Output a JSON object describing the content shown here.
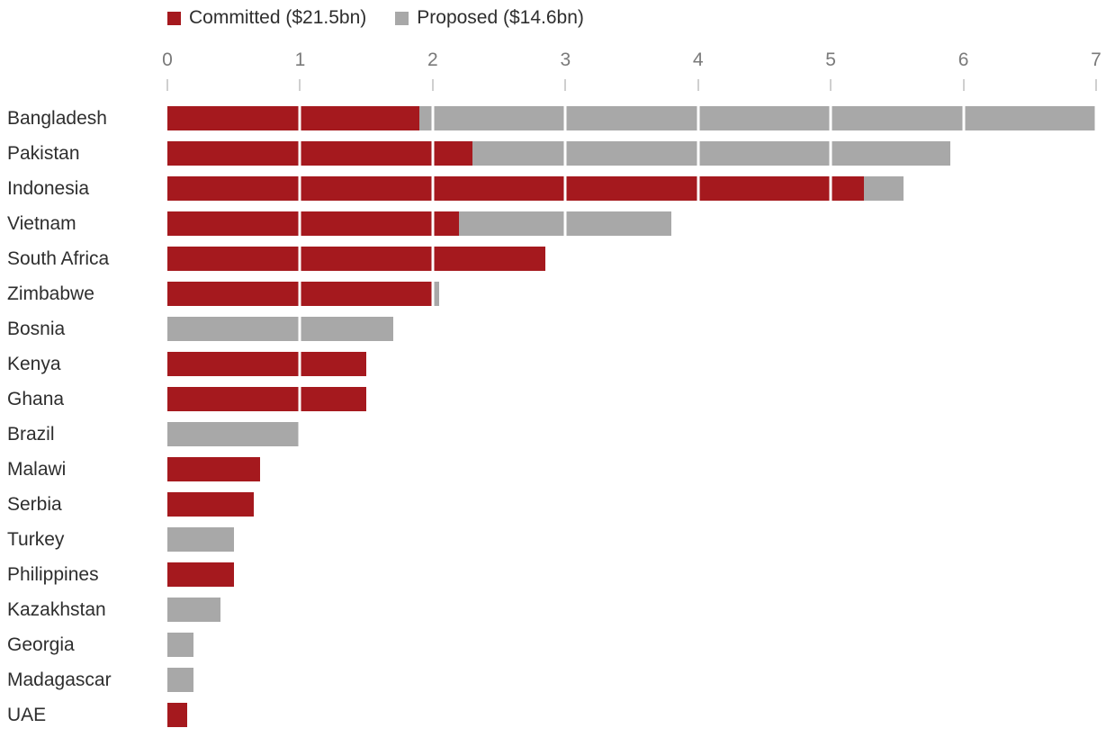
{
  "legend": {
    "committed": "Committed ($21.5bn)",
    "proposed": "Proposed ($14.6bn)"
  },
  "colors": {
    "committed": "#a5191e",
    "proposed": "#a8a8a8",
    "background": "#ffffff",
    "label_text": "#2e2e2e",
    "axis_text": "#7a7a7a",
    "tick": "#cfcfcf"
  },
  "chart_data": {
    "type": "bar",
    "orientation": "horizontal",
    "stacked": true,
    "title": "",
    "xlabel": "",
    "ylabel": "",
    "xlim": [
      0,
      7
    ],
    "x_ticks": [
      0,
      1,
      2,
      3,
      4,
      5,
      6,
      7
    ],
    "grid": "white vertical gridlines over bars at integer values",
    "legend_position": "top",
    "categories": [
      "Bangladesh",
      "Pakistan",
      "Indonesia",
      "Vietnam",
      "South Africa",
      "Zimbabwe",
      "Bosnia",
      "Kenya",
      "Ghana",
      "Brazil",
      "Malawi",
      "Serbia",
      "Turkey",
      "Philippines",
      "Kazakhstan",
      "Georgia",
      "Madagascar",
      "UAE"
    ],
    "series": [
      {
        "name": "Committed",
        "label": "Committed ($21.5bn)",
        "color": "#a5191e",
        "values": [
          1.9,
          2.3,
          5.25,
          2.2,
          2.85,
          2.0,
          0,
          1.5,
          1.5,
          0,
          0.7,
          0.65,
          0,
          0.5,
          0,
          0,
          0,
          0.15
        ]
      },
      {
        "name": "Proposed",
        "label": "Proposed ($14.6bn)",
        "color": "#a8a8a8",
        "values": [
          5.1,
          3.6,
          0.3,
          1.6,
          0,
          0.05,
          1.7,
          0,
          0,
          1.0,
          0,
          0,
          0.5,
          0,
          0.4,
          0.2,
          0.2,
          0
        ]
      }
    ]
  }
}
